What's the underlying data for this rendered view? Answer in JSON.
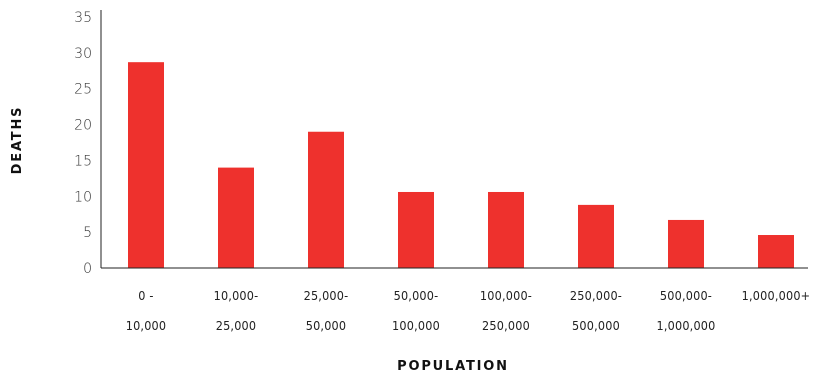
{
  "chart_data": {
    "type": "bar",
    "categories": [
      [
        "0 -",
        "10,000"
      ],
      [
        "10,000-",
        "25,000"
      ],
      [
        "25,000-",
        "50,000"
      ],
      [
        "50,000-",
        "100,000"
      ],
      [
        "100,000-",
        "250,000"
      ],
      [
        "250,000-",
        "500,000"
      ],
      [
        "500,000-",
        "1,000,000"
      ],
      [
        "1,000,000+"
      ]
    ],
    "values": [
      28.7,
      14.0,
      19.0,
      10.6,
      10.6,
      8.8,
      6.7,
      4.6
    ],
    "xlabel": "POPULATION",
    "ylabel": "DEATHS",
    "ylim": [
      0,
      35
    ],
    "yticks": [
      0,
      5,
      10,
      15,
      20,
      25,
      30,
      35
    ],
    "grid": false,
    "legend": "none",
    "bar_color": "#ee312d",
    "axis_color": "#222222"
  }
}
